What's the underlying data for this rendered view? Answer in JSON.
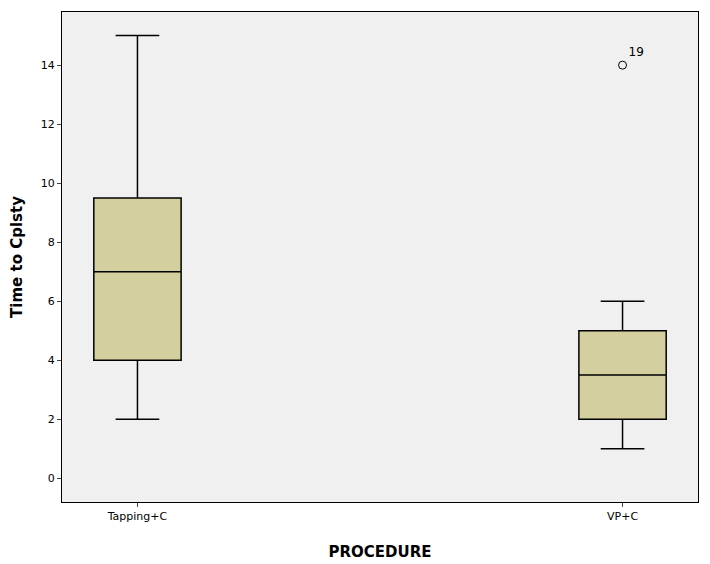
{
  "chart_data": {
    "type": "box",
    "x_label": "PROCEDURE",
    "y_label": "Time to Cplsty",
    "categories": [
      "Tapping+C",
      "VP+C"
    ],
    "min": [
      2,
      1
    ],
    "q1": [
      4,
      2
    ],
    "median": [
      7,
      3.5
    ],
    "q3": [
      9.5,
      5
    ],
    "max": [
      15,
      6
    ],
    "outliers": [
      {
        "category": "VP+C",
        "value": 14,
        "label": "19"
      }
    ],
    "color": "#d4cf9f",
    "ylim": [
      -0.8,
      15.8
    ],
    "yticks": [
      0,
      2,
      4,
      6,
      8,
      10,
      12,
      14
    ],
    "grid": false
  }
}
